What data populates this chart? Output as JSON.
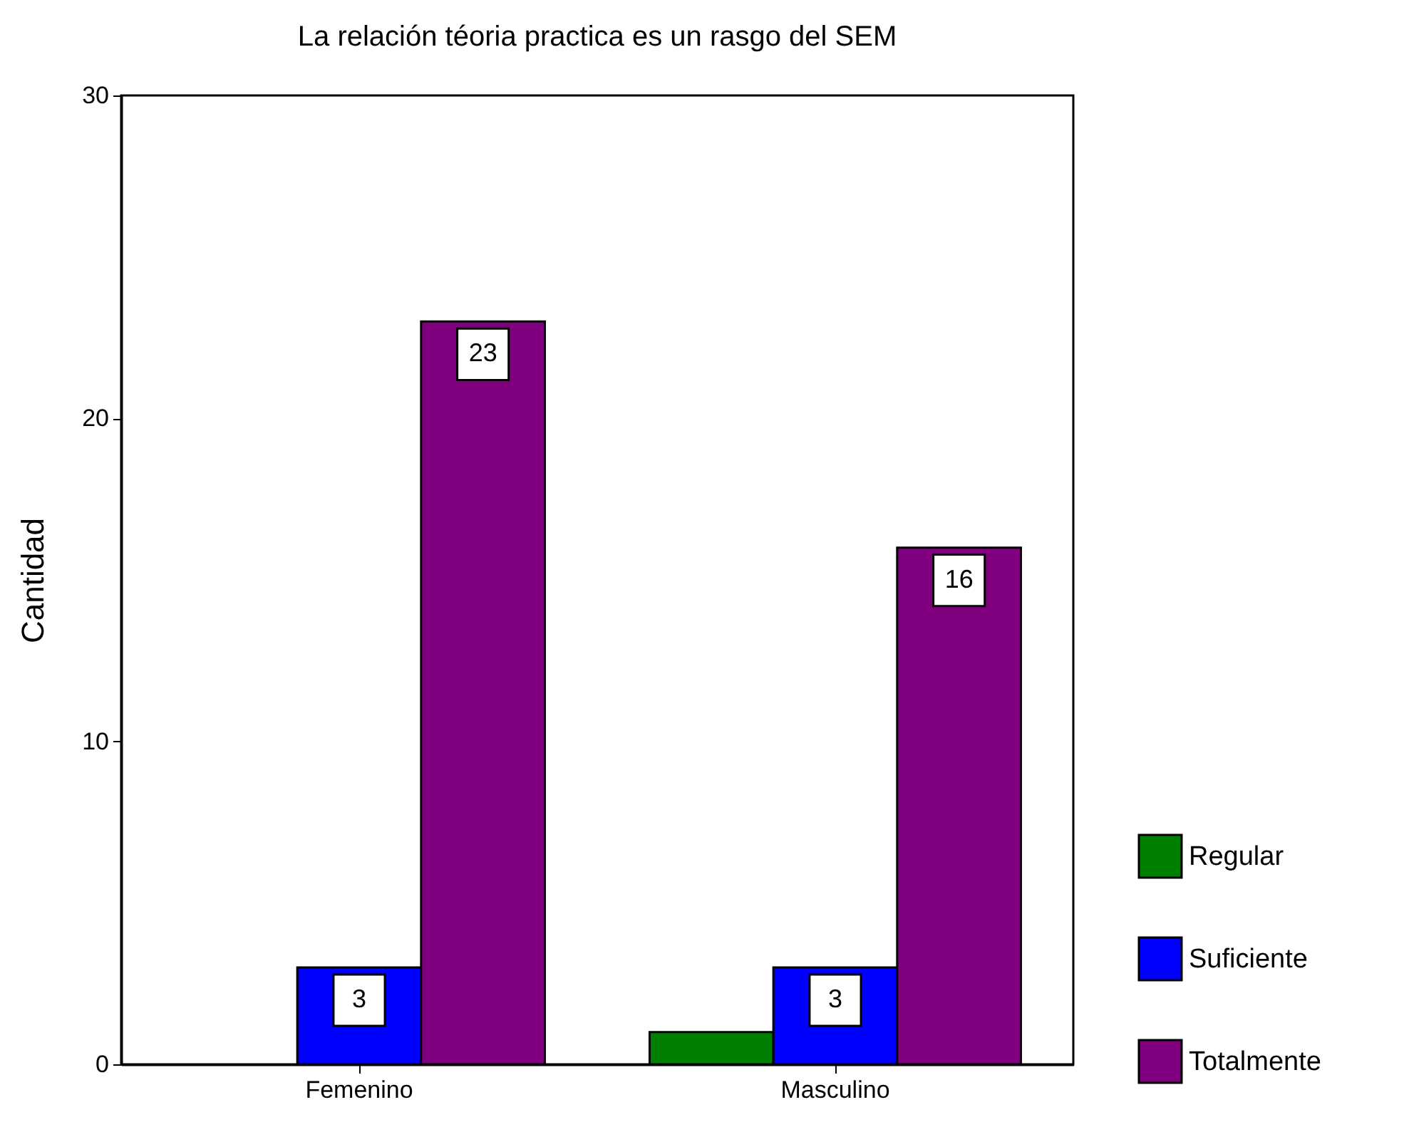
{
  "chart_data": {
    "type": "bar",
    "title": "La relación téoria practica es un rasgo del SEM",
    "ylabel": "Cantidad",
    "categories": [
      "Femenino",
      "Masculino"
    ],
    "series": [
      {
        "name": "Regular",
        "color": "#008000",
        "values": [
          null,
          1
        ]
      },
      {
        "name": "Suficiente",
        "color": "#0000ff",
        "values": [
          3,
          3
        ],
        "value_labels": [
          "3",
          "3"
        ]
      },
      {
        "name": "Totalmente",
        "color": "#800080",
        "values": [
          23,
          16
        ],
        "value_labels": [
          "23",
          "16"
        ]
      }
    ],
    "ylim": [
      0,
      30
    ],
    "yticks": [
      0,
      10,
      20,
      30
    ],
    "grid": false,
    "legend": "bottom right"
  }
}
